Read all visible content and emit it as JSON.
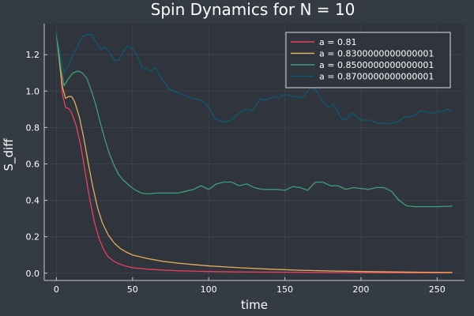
{
  "chart_data": {
    "type": "line",
    "title": "Spin Dynamics for N = 10",
    "xlabel": "time",
    "ylabel": "S_diff",
    "xlim": [
      -8,
      268
    ],
    "ylim": [
      -0.04,
      1.37
    ],
    "xticks": [
      0,
      50,
      100,
      150,
      200,
      250
    ],
    "yticks": [
      0.0,
      0.2,
      0.4,
      0.6,
      0.8,
      1.0,
      1.2
    ],
    "ytick_labels": [
      "0.0",
      "0.2",
      "0.4",
      "0.6",
      "0.8",
      "1.0",
      "1.2"
    ],
    "grid": true,
    "legend_position": "top-right",
    "background": "#30343c",
    "series": [
      {
        "name": "a = 0.81",
        "color": "#ea3f5f",
        "points": [
          [
            0,
            1.32
          ],
          [
            2,
            1.16
          ],
          [
            4,
            0.98
          ],
          [
            6,
            0.91
          ],
          [
            8,
            0.905
          ],
          [
            10,
            0.88
          ],
          [
            13,
            0.81
          ],
          [
            16,
            0.7
          ],
          [
            19,
            0.55
          ],
          [
            22,
            0.4
          ],
          [
            25,
            0.28
          ],
          [
            28,
            0.19
          ],
          [
            31,
            0.13
          ],
          [
            34,
            0.09
          ],
          [
            37,
            0.07
          ],
          [
            40,
            0.055
          ],
          [
            45,
            0.04
          ],
          [
            50,
            0.03
          ],
          [
            60,
            0.022
          ],
          [
            70,
            0.017
          ],
          [
            80,
            0.013
          ],
          [
            90,
            0.011
          ],
          [
            100,
            0.009
          ],
          [
            120,
            0.007
          ],
          [
            140,
            0.006
          ],
          [
            160,
            0.005
          ],
          [
            180,
            0.004
          ],
          [
            200,
            0.003
          ],
          [
            230,
            0.002
          ],
          [
            260,
            0.002
          ]
        ]
      },
      {
        "name": "a = 0.8300000000000001",
        "color": "#e4ad5a",
        "points": [
          [
            0,
            1.32
          ],
          [
            2,
            1.16
          ],
          [
            4,
            1.02
          ],
          [
            6,
            0.96
          ],
          [
            8,
            0.97
          ],
          [
            10,
            0.97
          ],
          [
            12,
            0.94
          ],
          [
            15,
            0.86
          ],
          [
            18,
            0.74
          ],
          [
            21,
            0.6
          ],
          [
            24,
            0.47
          ],
          [
            27,
            0.36
          ],
          [
            30,
            0.28
          ],
          [
            34,
            0.21
          ],
          [
            38,
            0.165
          ],
          [
            42,
            0.135
          ],
          [
            46,
            0.115
          ],
          [
            50,
            0.1
          ],
          [
            60,
            0.08
          ],
          [
            70,
            0.065
          ],
          [
            80,
            0.055
          ],
          [
            90,
            0.047
          ],
          [
            100,
            0.04
          ],
          [
            120,
            0.03
          ],
          [
            140,
            0.022
          ],
          [
            160,
            0.016
          ],
          [
            180,
            0.012
          ],
          [
            200,
            0.009
          ],
          [
            220,
            0.007
          ],
          [
            240,
            0.005
          ],
          [
            260,
            0.004
          ]
        ]
      },
      {
        "name": "a = 0.8500000000000001",
        "color": "#3d9f79",
        "points": [
          [
            0,
            1.32
          ],
          [
            3,
            1.12
          ],
          [
            5,
            1.03
          ],
          [
            8,
            1.07
          ],
          [
            11,
            1.1
          ],
          [
            14,
            1.11
          ],
          [
            17,
            1.1
          ],
          [
            20,
            1.07
          ],
          [
            23,
            1.0
          ],
          [
            26,
            0.92
          ],
          [
            29,
            0.82
          ],
          [
            32,
            0.73
          ],
          [
            35,
            0.65
          ],
          [
            38,
            0.59
          ],
          [
            41,
            0.54
          ],
          [
            44,
            0.51
          ],
          [
            48,
            0.48
          ],
          [
            52,
            0.455
          ],
          [
            56,
            0.44
          ],
          [
            60,
            0.435
          ],
          [
            65,
            0.44
          ],
          [
            70,
            0.44
          ],
          [
            75,
            0.44
          ],
          [
            80,
            0.44
          ],
          [
            85,
            0.45
          ],
          [
            90,
            0.46
          ],
          [
            95,
            0.48
          ],
          [
            100,
            0.46
          ],
          [
            105,
            0.49
          ],
          [
            110,
            0.5
          ],
          [
            115,
            0.5
          ],
          [
            120,
            0.48
          ],
          [
            125,
            0.49
          ],
          [
            130,
            0.47
          ],
          [
            135,
            0.46
          ],
          [
            140,
            0.46
          ],
          [
            145,
            0.46
          ],
          [
            150,
            0.455
          ],
          [
            155,
            0.475
          ],
          [
            160,
            0.47
          ],
          [
            165,
            0.455
          ],
          [
            170,
            0.5
          ],
          [
            175,
            0.5
          ],
          [
            180,
            0.48
          ],
          [
            185,
            0.48
          ],
          [
            190,
            0.46
          ],
          [
            195,
            0.47
          ],
          [
            200,
            0.465
          ],
          [
            205,
            0.46
          ],
          [
            210,
            0.47
          ],
          [
            215,
            0.47
          ],
          [
            220,
            0.45
          ],
          [
            225,
            0.4
          ],
          [
            230,
            0.37
          ],
          [
            235,
            0.365
          ],
          [
            240,
            0.365
          ],
          [
            250,
            0.365
          ],
          [
            260,
            0.368
          ]
        ]
      },
      {
        "name": "a = 0.8700000000000001",
        "color": "#0b5a73",
        "points": [
          [
            0,
            1.32
          ],
          [
            3,
            1.18
          ],
          [
            5,
            1.1
          ],
          [
            8,
            1.14
          ],
          [
            11,
            1.2
          ],
          [
            14,
            1.25
          ],
          [
            17,
            1.3
          ],
          [
            20,
            1.31
          ],
          [
            23,
            1.31
          ],
          [
            26,
            1.27
          ],
          [
            29,
            1.23
          ],
          [
            32,
            1.24
          ],
          [
            35,
            1.21
          ],
          [
            38,
            1.17
          ],
          [
            41,
            1.17
          ],
          [
            44,
            1.22
          ],
          [
            47,
            1.25
          ],
          [
            50,
            1.23
          ],
          [
            53,
            1.2
          ],
          [
            56,
            1.13
          ],
          [
            59,
            1.12
          ],
          [
            62,
            1.11
          ],
          [
            65,
            1.13
          ],
          [
            68,
            1.08
          ],
          [
            71,
            1.05
          ],
          [
            74,
            1.01
          ],
          [
            77,
            1.0
          ],
          [
            80,
            0.99
          ],
          [
            83,
            0.98
          ],
          [
            86,
            0.97
          ],
          [
            89,
            0.96
          ],
          [
            92,
            0.955
          ],
          [
            95,
            0.95
          ],
          [
            98,
            0.93
          ],
          [
            101,
            0.9
          ],
          [
            104,
            0.85
          ],
          [
            107,
            0.84
          ],
          [
            110,
            0.83
          ],
          [
            113,
            0.835
          ],
          [
            116,
            0.85
          ],
          [
            119,
            0.87
          ],
          [
            122,
            0.89
          ],
          [
            125,
            0.9
          ],
          [
            128,
            0.89
          ],
          [
            131,
            0.92
          ],
          [
            134,
            0.96
          ],
          [
            137,
            0.95
          ],
          [
            140,
            0.96
          ],
          [
            143,
            0.97
          ],
          [
            146,
            0.96
          ],
          [
            149,
            0.98
          ],
          [
            152,
            0.98
          ],
          [
            155,
            0.97
          ],
          [
            158,
            0.97
          ],
          [
            161,
            0.96
          ],
          [
            164,
            0.99
          ],
          [
            167,
            1.02
          ],
          [
            170,
            1.01
          ],
          [
            173,
            0.97
          ],
          [
            176,
            0.93
          ],
          [
            179,
            0.91
          ],
          [
            182,
            0.93
          ],
          [
            185,
            0.88
          ],
          [
            188,
            0.84
          ],
          [
            191,
            0.85
          ],
          [
            194,
            0.88
          ],
          [
            197,
            0.86
          ],
          [
            200,
            0.84
          ],
          [
            203,
            0.84
          ],
          [
            206,
            0.84
          ],
          [
            209,
            0.83
          ],
          [
            212,
            0.82
          ],
          [
            215,
            0.825
          ],
          [
            218,
            0.82
          ],
          [
            221,
            0.825
          ],
          [
            224,
            0.83
          ],
          [
            227,
            0.85
          ],
          [
            230,
            0.86
          ],
          [
            233,
            0.86
          ],
          [
            236,
            0.87
          ],
          [
            239,
            0.89
          ],
          [
            242,
            0.89
          ],
          [
            245,
            0.88
          ],
          [
            248,
            0.88
          ],
          [
            251,
            0.89
          ],
          [
            254,
            0.89
          ],
          [
            257,
            0.9
          ],
          [
            260,
            0.89
          ]
        ]
      }
    ]
  }
}
